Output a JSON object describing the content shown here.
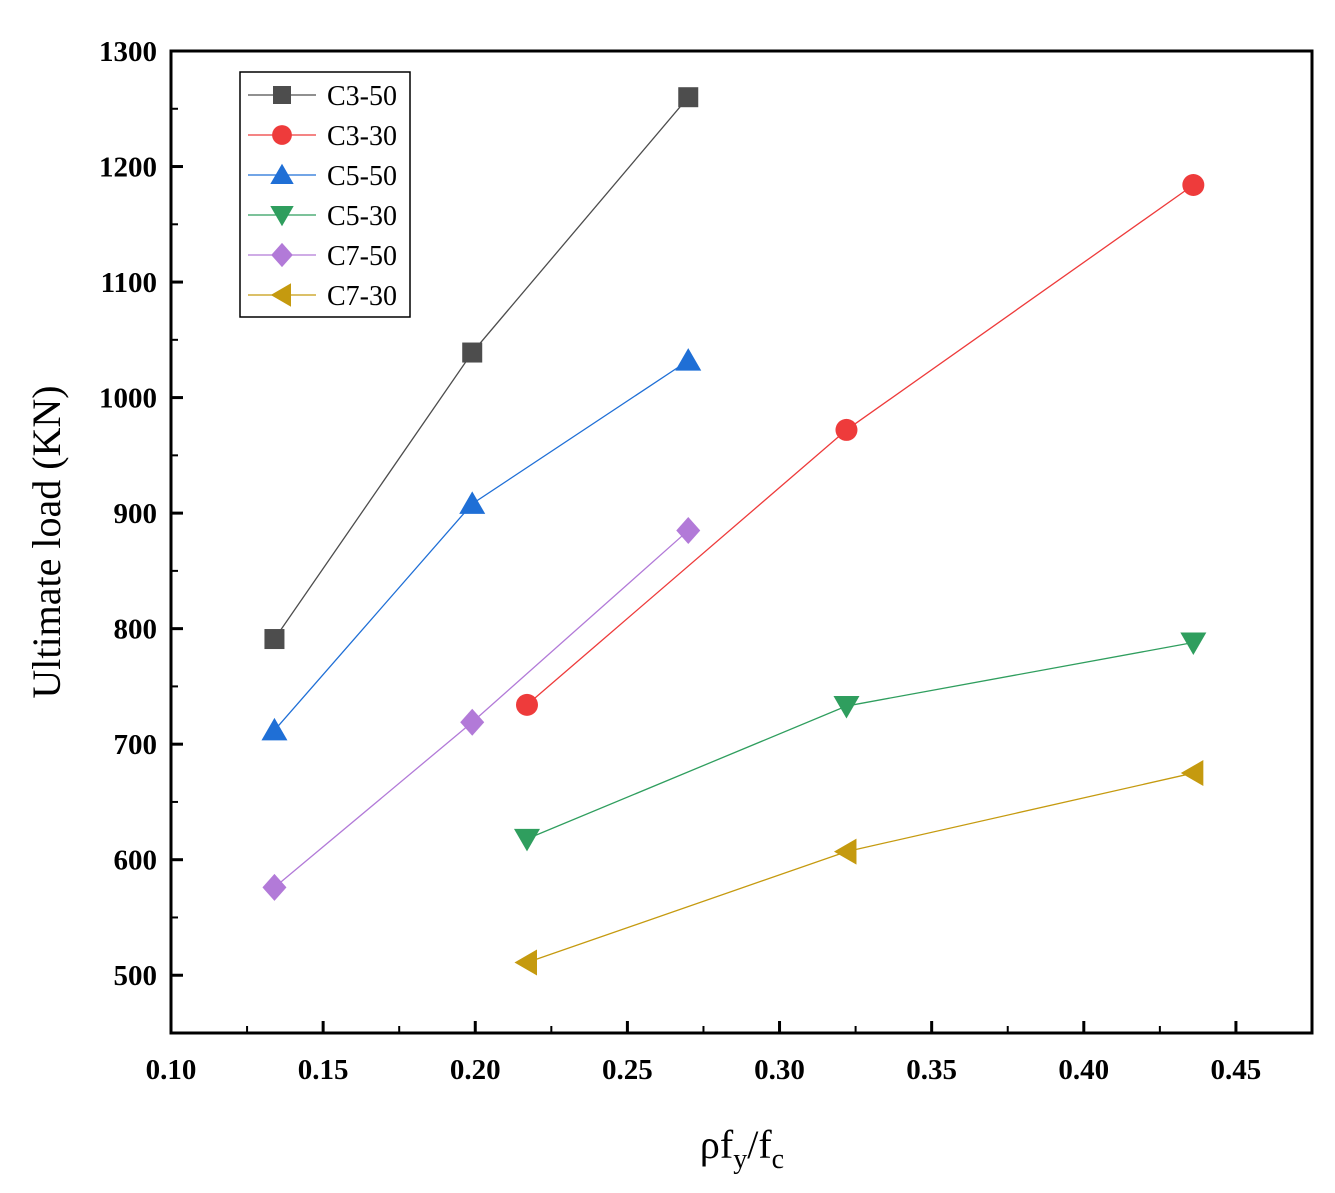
{
  "chart_data": {
    "type": "line",
    "title": "",
    "xlabel": "ρf_y/f_c",
    "xlabel_parts": {
      "main": "ρf",
      "sub1": "y",
      "sep": "/f",
      "sub2": "c"
    },
    "ylabel": "Ultimate load (KN)",
    "xlim": [
      0.1,
      0.475
    ],
    "ylim": [
      450,
      1300
    ],
    "xticks": [
      "0.10",
      "0.15",
      "0.20",
      "0.25",
      "0.30",
      "0.35",
      "0.40",
      "0.45"
    ],
    "yticks": [
      "500",
      "600",
      "700",
      "800",
      "900",
      "1000",
      "1100",
      "1200",
      "1300"
    ],
    "legend_position": "top-left",
    "grid": false,
    "series": [
      {
        "name": "C3-50",
        "color": "#4d4d4d",
        "marker": "square",
        "x": [
          0.134,
          0.199,
          0.27
        ],
        "y": [
          791,
          1039,
          1260
        ]
      },
      {
        "name": "C3-30",
        "color": "#ee3b3b",
        "marker": "circle",
        "x": [
          0.217,
          0.322,
          0.436
        ],
        "y": [
          734,
          972,
          1184
        ]
      },
      {
        "name": "C5-50",
        "color": "#1f6fd6",
        "marker": "triangle-up",
        "x": [
          0.134,
          0.199,
          0.27
        ],
        "y": [
          712,
          908,
          1032
        ]
      },
      {
        "name": "C5-30",
        "color": "#2f9e5e",
        "marker": "triangle-down",
        "x": [
          0.217,
          0.322,
          0.436
        ],
        "y": [
          618,
          733,
          788
        ]
      },
      {
        "name": "C7-50",
        "color": "#b27ad8",
        "marker": "diamond",
        "x": [
          0.134,
          0.199,
          0.27
        ],
        "y": [
          576,
          719,
          885
        ]
      },
      {
        "name": "C7-30",
        "color": "#c59a0f",
        "marker": "triangle-left",
        "x": [
          0.217,
          0.322,
          0.436
        ],
        "y": [
          511,
          607,
          675
        ]
      }
    ]
  }
}
